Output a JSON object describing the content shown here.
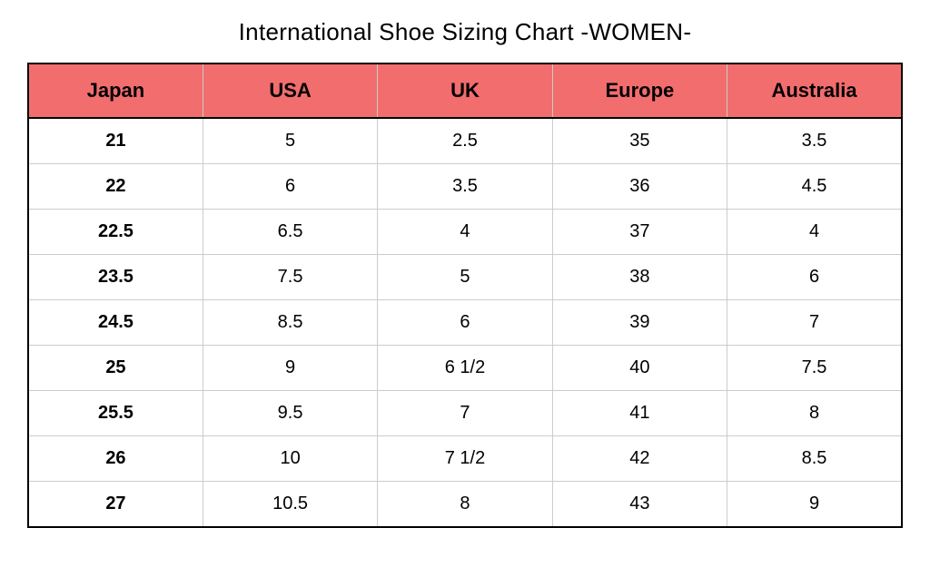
{
  "title": "International Shoe Sizing Chart -WOMEN-",
  "table": {
    "header_bg_color": "#f26d6d",
    "border_color": "#cccccc",
    "outer_border_color": "#000000",
    "title_fontsize": 26,
    "header_fontsize": 22,
    "cell_fontsize": 20,
    "columns": [
      "Japan",
      "USA",
      "UK",
      "Europe",
      "Australia"
    ],
    "rows": [
      [
        "21",
        "5",
        "2.5",
        "35",
        "3.5"
      ],
      [
        "22",
        "6",
        "3.5",
        "36",
        "4.5"
      ],
      [
        "22.5",
        "6.5",
        "4",
        "37",
        "4"
      ],
      [
        "23.5",
        "7.5",
        "5",
        "38",
        "6"
      ],
      [
        "24.5",
        "8.5",
        "6",
        "39",
        "7"
      ],
      [
        "25",
        "9",
        "6 1/2",
        "40",
        "7.5"
      ],
      [
        "25.5",
        "9.5",
        "7",
        "41",
        "8"
      ],
      [
        "26",
        "10",
        "7 1/2",
        "42",
        "8.5"
      ],
      [
        "27",
        "10.5",
        "8",
        "43",
        "9"
      ]
    ]
  }
}
